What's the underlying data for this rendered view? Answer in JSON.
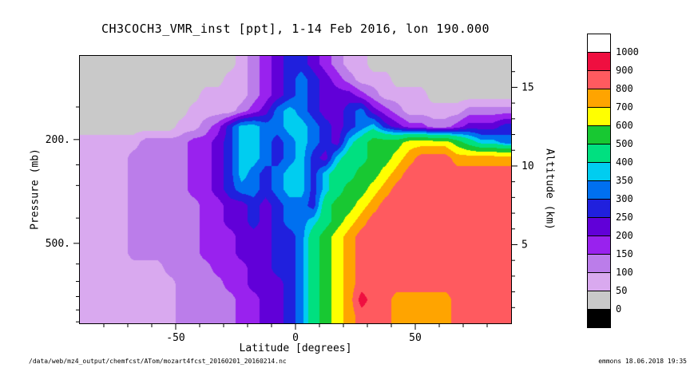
{
  "figure": {
    "footer_left": "/data/web/mz4_output/chemfcst/ATom/mozart4fcst_20160201_20160214.nc",
    "footer_right": "emmons 18.06.2018 19:35"
  },
  "chart_data": {
    "type": "heatmap",
    "title": "CH3COCH3_VMR_inst [ppt], 1-14 Feb 2016, lon 190.000",
    "units": "ppt",
    "grid_on": false,
    "axes": {
      "x": {
        "label": "Latitude [degrees]",
        "range": [
          -90,
          90
        ],
        "major": [
          {
            "value": -50,
            "label": "-50"
          },
          {
            "value": 0,
            "label": "0"
          },
          {
            "value": 50,
            "label": "50"
          }
        ],
        "minor_step": 10
      },
      "y_left": {
        "label": "Pressure (mb)",
        "major": [
          {
            "value": 200,
            "label": "200."
          },
          {
            "value": 500,
            "label": "500."
          }
        ],
        "minor": [
          150,
          250,
          300,
          400,
          600,
          700,
          800,
          900,
          1000
        ]
      },
      "y_right": {
        "label": "Altitude (km)",
        "range_km": [
          0,
          17
        ],
        "major": [
          {
            "value": 5,
            "label": "5"
          },
          {
            "value": 10,
            "label": "10"
          },
          {
            "value": 15,
            "label": "15"
          }
        ],
        "minor_step": 1
      }
    },
    "levels": [
      0,
      50,
      100,
      150,
      200,
      250,
      300,
      350,
      400,
      500,
      600,
      700,
      800,
      900,
      1000
    ],
    "palette_below": "#000000",
    "palette": [
      "#c9c9c9",
      "#d9a9ef",
      "#bb7dea",
      "#9922ee",
      "#6100d8",
      "#2020dd",
      "#0070f0",
      "#00cdf0",
      "#00e080",
      "#18c832",
      "#ffff00",
      "#ffa400",
      "#ff5a5f",
      "#ef0f40",
      "#ffffff"
    ],
    "colorbar": {
      "colors_top_to_bottom": [
        "#ffffff",
        "#ef0f40",
        "#ff5a5f",
        "#ffa400",
        "#ffff00",
        "#18c832",
        "#00e080",
        "#00cdf0",
        "#0070f0",
        "#2020dd",
        "#6100d8",
        "#9922ee",
        "#bb7dea",
        "#d9a9ef",
        "#c9c9c9",
        "#000000"
      ],
      "boundary_labels": [
        "1000",
        "900",
        "800",
        "700",
        "600",
        "500",
        "400",
        "350",
        "300",
        "250",
        "200",
        "150",
        "100",
        "50",
        "0"
      ]
    },
    "lat_centers": [
      -87.5,
      -82.5,
      -77.5,
      -72.5,
      -67.5,
      -62.5,
      -57.5,
      -52.5,
      -47.5,
      -42.5,
      -37.5,
      -32.5,
      -27.5,
      -22.5,
      -17.5,
      -12.5,
      -7.5,
      -2.5,
      2.5,
      7.5,
      12.5,
      17.5,
      22.5,
      27.5,
      32.5,
      37.5,
      42.5,
      47.5,
      52.5,
      57.5,
      62.5,
      67.5,
      72.5,
      77.5,
      82.5,
      87.5
    ],
    "alt_centers_km": [
      16.5,
      15.5,
      14.5,
      13.5,
      12.5,
      11.5,
      10.5,
      9.5,
      8.5,
      7.5,
      6.5,
      5.5,
      4.5,
      3.5,
      2.5,
      1.5,
      0.5
    ],
    "values_ppt": [
      [
        25,
        25,
        25,
        25,
        25,
        25,
        25,
        25,
        25,
        25,
        25,
        25,
        25,
        75,
        125,
        175,
        225,
        275,
        275,
        225,
        175,
        125,
        75,
        75,
        25,
        25,
        25,
        25,
        25,
        25,
        25,
        25,
        25,
        25,
        25,
        25
      ],
      [
        25,
        25,
        25,
        25,
        25,
        25,
        25,
        25,
        25,
        25,
        25,
        25,
        75,
        75,
        125,
        175,
        225,
        275,
        325,
        275,
        225,
        175,
        125,
        75,
        75,
        75,
        25,
        25,
        25,
        25,
        25,
        25,
        25,
        25,
        25,
        25
      ],
      [
        25,
        25,
        25,
        25,
        25,
        25,
        25,
        25,
        25,
        25,
        75,
        75,
        75,
        75,
        125,
        175,
        225,
        275,
        325,
        275,
        225,
        225,
        225,
        175,
        125,
        75,
        75,
        75,
        75,
        25,
        25,
        25,
        25,
        25,
        25,
        25
      ],
      [
        25,
        25,
        25,
        25,
        25,
        25,
        25,
        25,
        25,
        75,
        75,
        75,
        75,
        125,
        175,
        225,
        325,
        375,
        325,
        275,
        225,
        225,
        275,
        325,
        225,
        175,
        125,
        75,
        75,
        75,
        75,
        75,
        125,
        125,
        125,
        125
      ],
      [
        25,
        25,
        25,
        25,
        25,
        25,
        25,
        25,
        75,
        75,
        125,
        175,
        275,
        375,
        375,
        325,
        325,
        375,
        375,
        325,
        275,
        225,
        275,
        325,
        375,
        275,
        225,
        175,
        175,
        125,
        125,
        175,
        225,
        225,
        225,
        275
      ],
      [
        75,
        75,
        75,
        75,
        75,
        125,
        125,
        125,
        125,
        175,
        175,
        225,
        275,
        375,
        375,
        325,
        275,
        325,
        375,
        325,
        275,
        225,
        375,
        450,
        550,
        550,
        550,
        650,
        650,
        650,
        650,
        550,
        450,
        375,
        375,
        325
      ],
      [
        75,
        75,
        75,
        75,
        125,
        125,
        125,
        125,
        125,
        175,
        175,
        225,
        275,
        375,
        375,
        325,
        275,
        325,
        375,
        275,
        225,
        375,
        450,
        450,
        550,
        550,
        650,
        750,
        850,
        850,
        850,
        750,
        750,
        750,
        750,
        750
      ],
      [
        75,
        75,
        75,
        75,
        125,
        125,
        125,
        125,
        125,
        175,
        175,
        225,
        275,
        375,
        325,
        275,
        325,
        375,
        375,
        275,
        375,
        450,
        450,
        550,
        550,
        650,
        750,
        850,
        850,
        850,
        850,
        850,
        850,
        850,
        850,
        850
      ],
      [
        75,
        75,
        75,
        75,
        125,
        125,
        125,
        125,
        125,
        175,
        175,
        225,
        275,
        325,
        325,
        275,
        325,
        375,
        375,
        275,
        375,
        450,
        550,
        550,
        650,
        750,
        850,
        850,
        850,
        850,
        850,
        850,
        850,
        850,
        850,
        850
      ],
      [
        75,
        75,
        75,
        75,
        125,
        125,
        125,
        125,
        125,
        125,
        175,
        175,
        225,
        225,
        275,
        225,
        275,
        325,
        325,
        275,
        450,
        550,
        550,
        650,
        750,
        850,
        850,
        850,
        850,
        850,
        850,
        850,
        850,
        850,
        850,
        850
      ],
      [
        75,
        75,
        75,
        75,
        125,
        125,
        125,
        125,
        125,
        125,
        175,
        175,
        225,
        225,
        275,
        225,
        275,
        325,
        325,
        375,
        450,
        550,
        650,
        750,
        850,
        850,
        850,
        850,
        850,
        850,
        850,
        850,
        850,
        850,
        850,
        850
      ],
      [
        75,
        75,
        75,
        75,
        125,
        125,
        125,
        125,
        125,
        125,
        175,
        175,
        175,
        225,
        225,
        225,
        275,
        275,
        325,
        450,
        550,
        650,
        750,
        850,
        850,
        850,
        850,
        850,
        850,
        850,
        850,
        850,
        850,
        850,
        850,
        850
      ],
      [
        75,
        75,
        75,
        75,
        125,
        125,
        125,
        125,
        125,
        125,
        175,
        175,
        175,
        225,
        225,
        225,
        275,
        275,
        325,
        450,
        550,
        650,
        750,
        850,
        850,
        850,
        850,
        850,
        850,
        850,
        850,
        850,
        850,
        850,
        850,
        850
      ],
      [
        75,
        75,
        75,
        75,
        75,
        75,
        75,
        125,
        125,
        125,
        125,
        175,
        175,
        175,
        225,
        225,
        275,
        275,
        325,
        450,
        550,
        650,
        750,
        850,
        850,
        850,
        850,
        850,
        850,
        850,
        850,
        850,
        850,
        850,
        850,
        850
      ],
      [
        75,
        75,
        75,
        75,
        75,
        75,
        75,
        75,
        125,
        125,
        125,
        125,
        175,
        175,
        225,
        225,
        225,
        275,
        325,
        450,
        550,
        650,
        750,
        850,
        850,
        850,
        850,
        850,
        850,
        850,
        850,
        850,
        850,
        850,
        850,
        850
      ],
      [
        75,
        75,
        75,
        75,
        75,
        75,
        75,
        75,
        125,
        125,
        125,
        125,
        125,
        175,
        175,
        225,
        225,
        275,
        325,
        450,
        550,
        650,
        750,
        950,
        850,
        850,
        750,
        750,
        750,
        750,
        750,
        850,
        850,
        850,
        850,
        850
      ],
      [
        75,
        75,
        75,
        75,
        75,
        75,
        75,
        75,
        125,
        125,
        125,
        125,
        125,
        175,
        175,
        225,
        225,
        275,
        325,
        450,
        550,
        650,
        750,
        850,
        850,
        850,
        750,
        750,
        750,
        750,
        750,
        850,
        850,
        850,
        850,
        850
      ]
    ]
  }
}
